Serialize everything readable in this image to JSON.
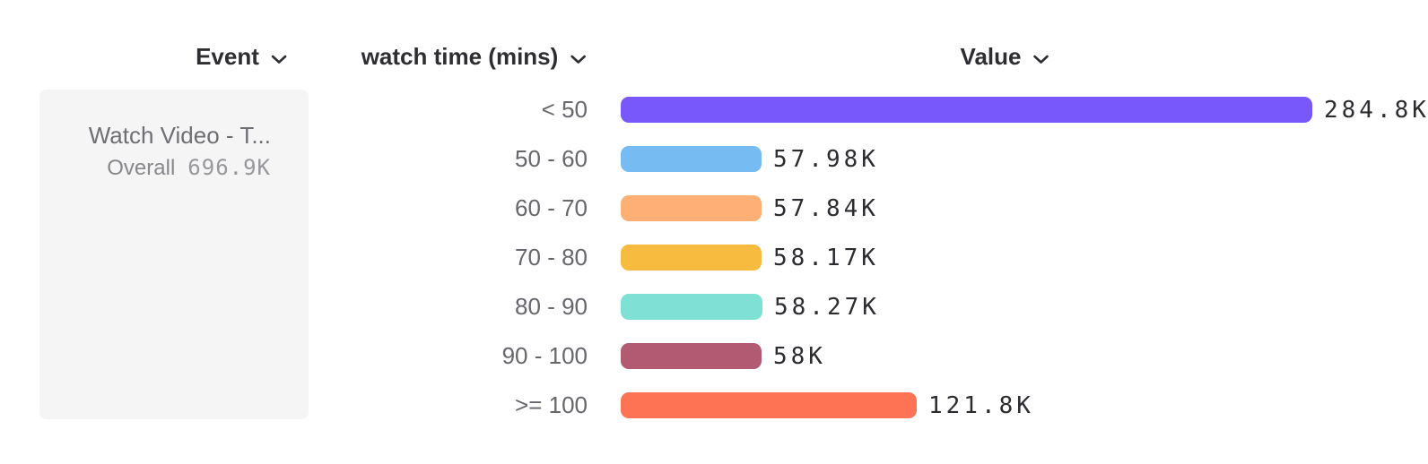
{
  "header": {
    "event": {
      "label": "Event"
    },
    "breakdown": {
      "label": "watch time (mins)"
    },
    "value": {
      "label": "Value"
    }
  },
  "event_card": {
    "title": "Watch Video - T...",
    "overall_label": "Overall",
    "overall_value": "696.9K"
  },
  "chart_data": {
    "type": "bar",
    "orientation": "horizontal",
    "title": "",
    "xlabel": "Value",
    "ylabel": "watch time (mins)",
    "categories": [
      "< 50",
      "50 - 60",
      "60 - 70",
      "70 - 80",
      "80 - 90",
      "90 - 100",
      ">= 100"
    ],
    "values": [
      284800,
      57980,
      57840,
      58170,
      58270,
      58000,
      121800
    ],
    "value_labels": [
      "284.8K",
      "57.98K",
      "57.84K",
      "58.17K",
      "58.27K",
      "58K",
      "121.8K"
    ],
    "bar_colors": [
      "#7857FB",
      "#76BCF3",
      "#FDAF76",
      "#F7BB40",
      "#7FE0D5",
      "#B15A71",
      "#FE7354"
    ],
    "value_axis": {
      "min": 0,
      "max": 284800
    },
    "grid": false,
    "legend": "none"
  },
  "colors": {
    "header_text": "#2d2d32",
    "category_label": "#66666c",
    "value_text": "#2b2b30",
    "card_bg": "#f5f5f6",
    "card_title": "#6e6e73",
    "overall_label": "#87878c",
    "overall_value": "#97979c"
  }
}
